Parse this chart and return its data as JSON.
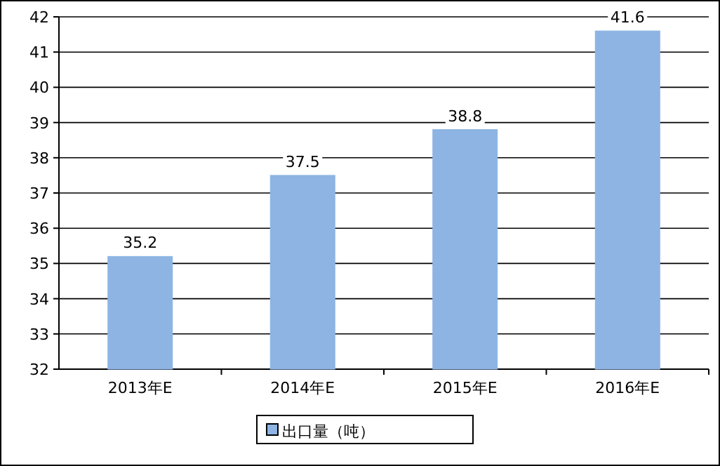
{
  "chart_data": {
    "type": "bar",
    "categories": [
      "2013年E",
      "2014年E",
      "2015年E",
      "2016年E"
    ],
    "series": [
      {
        "name": "出口量（吨）",
        "color": "#8db4e2",
        "values": [
          35.2,
          37.5,
          38.8,
          41.6
        ]
      }
    ],
    "ylim": [
      32,
      42
    ],
    "yticks": [
      32,
      33,
      34,
      35,
      36,
      37,
      38,
      39,
      40,
      41,
      42
    ],
    "grid": "y",
    "data_labels": true,
    "legend": "bottom"
  }
}
